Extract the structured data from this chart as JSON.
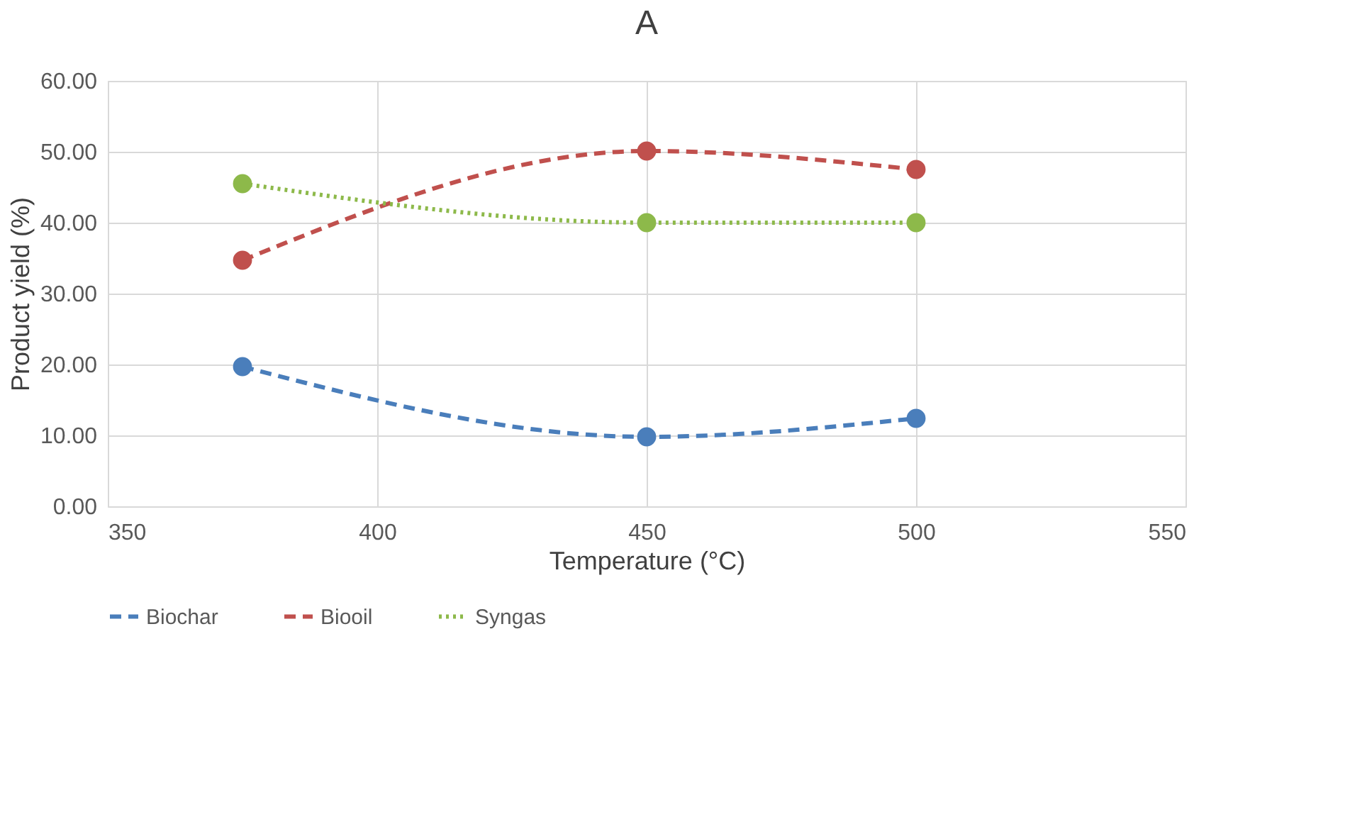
{
  "chart_data": {
    "type": "line",
    "title": "A",
    "xlabel": "Temperature (°C)",
    "ylabel": "Product yield (%)",
    "x": [
      375,
      450,
      500
    ],
    "series": [
      {
        "name": "Biochar",
        "color": "#4a7ebb",
        "line_style": "dashed",
        "values": [
          19.7,
          9.8,
          12.4
        ]
      },
      {
        "name": "Biooil",
        "color": "#c0504d",
        "line_style": "dashed",
        "values": [
          34.7,
          50.1,
          47.5
        ]
      },
      {
        "name": "Syngas",
        "color": "#8db94a",
        "line_style": "dotted",
        "values": [
          45.5,
          40.0,
          40.0
        ]
      }
    ],
    "xlim": [
      350,
      550
    ],
    "xticks": [
      350,
      400,
      450,
      500,
      550
    ],
    "ylim": [
      0,
      60
    ],
    "yticks": [
      {
        "value": 0,
        "label": "0.00"
      },
      {
        "value": 10,
        "label": "10.00"
      },
      {
        "value": 20,
        "label": "20.00"
      },
      {
        "value": 30,
        "label": "30.00"
      },
      {
        "value": 40,
        "label": "40.00"
      },
      {
        "value": 50,
        "label": "50.00"
      },
      {
        "value": 60,
        "label": "60.00"
      }
    ],
    "grid": true,
    "legend": "bottom",
    "marker": "circle"
  }
}
